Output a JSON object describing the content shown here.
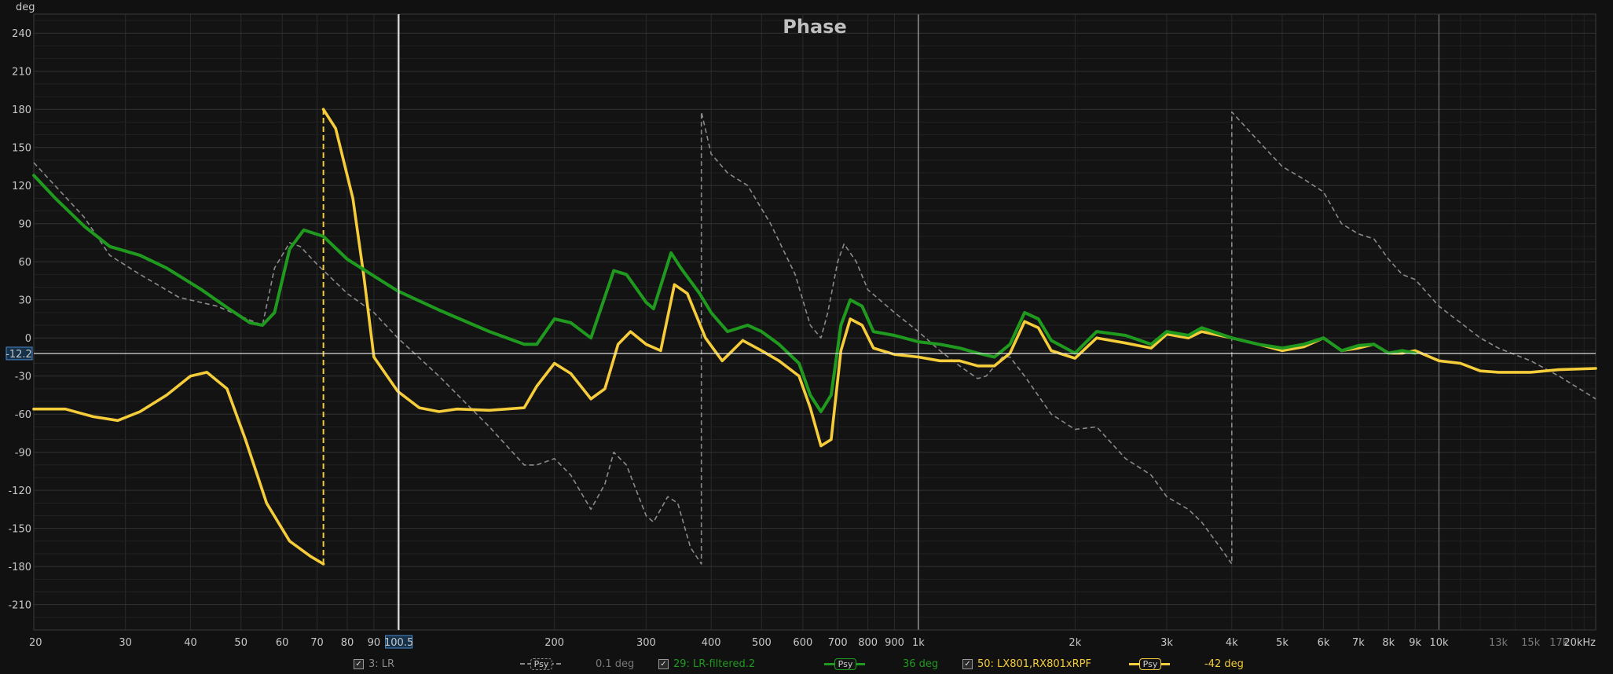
{
  "chart_data": {
    "type": "line",
    "title": "Phase",
    "ylabel": "deg",
    "xscale": "log",
    "xlim": [
      20,
      20000
    ],
    "ylim": [
      -230,
      255
    ],
    "y_ticks": [
      240,
      210,
      180,
      150,
      120,
      90,
      60,
      30,
      0,
      -30,
      -60,
      -90,
      -120,
      -150,
      -180,
      -210
    ],
    "x_ticks": [
      {
        "v": 20,
        "label": "20"
      },
      {
        "v": 30,
        "label": "30"
      },
      {
        "v": 40,
        "label": "40"
      },
      {
        "v": 50,
        "label": "50"
      },
      {
        "v": 60,
        "label": "60"
      },
      {
        "v": 70,
        "label": "70"
      },
      {
        "v": 80,
        "label": "80"
      },
      {
        "v": 90,
        "label": "90"
      },
      {
        "v": 200,
        "label": "200"
      },
      {
        "v": 300,
        "label": "300"
      },
      {
        "v": 400,
        "label": "400"
      },
      {
        "v": 500,
        "label": "500"
      },
      {
        "v": 600,
        "label": "600"
      },
      {
        "v": 700,
        "label": "700"
      },
      {
        "v": 800,
        "label": "800"
      },
      {
        "v": 900,
        "label": "900"
      },
      {
        "v": 1000,
        "label": "1k"
      },
      {
        "v": 2000,
        "label": "2k"
      },
      {
        "v": 3000,
        "label": "3k"
      },
      {
        "v": 4000,
        "label": "4k"
      },
      {
        "v": 5000,
        "label": "5k"
      },
      {
        "v": 6000,
        "label": "6k"
      },
      {
        "v": 7000,
        "label": "7k"
      },
      {
        "v": 8000,
        "label": "8k"
      },
      {
        "v": 9000,
        "label": "9k"
      },
      {
        "v": 10000,
        "label": "10k"
      },
      {
        "v": 13000,
        "label": "13k",
        "dim": true
      },
      {
        "v": 15000,
        "label": "15k",
        "dim": true
      },
      {
        "v": 17000,
        "label": "17k",
        "dim": true
      },
      {
        "v": 20000,
        "label": "20kHz"
      }
    ],
    "cursor": {
      "x": 100.5,
      "y": -12.2,
      "x_label": "100.5",
      "y_label": "-12.2"
    },
    "series": [
      {
        "name": "3: LR",
        "color": "#8a8a8a",
        "style": "dashed",
        "points": [
          [
            20,
            138
          ],
          [
            25,
            95
          ],
          [
            28,
            65
          ],
          [
            32,
            50
          ],
          [
            38,
            32
          ],
          [
            45,
            25
          ],
          [
            50,
            17
          ],
          [
            55,
            10
          ],
          [
            58,
            55
          ],
          [
            62,
            75
          ],
          [
            65,
            72
          ],
          [
            70,
            58
          ],
          [
            80,
            35
          ],
          [
            90,
            20
          ],
          [
            100,
            0
          ],
          [
            120,
            -30
          ],
          [
            150,
            -70
          ],
          [
            175,
            -100
          ],
          [
            185,
            -100
          ],
          [
            200,
            -95
          ],
          [
            215,
            -108
          ],
          [
            235,
            -135
          ],
          [
            250,
            -115
          ],
          [
            260,
            -90
          ],
          [
            275,
            -100
          ],
          [
            300,
            -140
          ],
          [
            310,
            -145
          ],
          [
            330,
            -125
          ],
          [
            345,
            -130
          ],
          [
            365,
            -165
          ],
          [
            383,
            -178
          ],
          [
            383,
            178
          ],
          [
            400,
            145
          ],
          [
            430,
            130
          ],
          [
            470,
            120
          ],
          [
            520,
            90
          ],
          [
            580,
            50
          ],
          [
            620,
            10
          ],
          [
            650,
            0
          ],
          [
            670,
            20
          ],
          [
            700,
            60
          ],
          [
            720,
            74
          ],
          [
            760,
            60
          ],
          [
            800,
            38
          ],
          [
            900,
            20
          ],
          [
            1000,
            5
          ],
          [
            1100,
            -10
          ],
          [
            1200,
            -22
          ],
          [
            1300,
            -32
          ],
          [
            1350,
            -30
          ],
          [
            1450,
            -15
          ],
          [
            1500,
            -15
          ],
          [
            1600,
            -30
          ],
          [
            1800,
            -60
          ],
          [
            2000,
            -72
          ],
          [
            2200,
            -70
          ],
          [
            2500,
            -95
          ],
          [
            2800,
            -108
          ],
          [
            3000,
            -125
          ],
          [
            3300,
            -135
          ],
          [
            3500,
            -145
          ],
          [
            3800,
            -165
          ],
          [
            4000,
            -178
          ],
          [
            4000,
            178
          ],
          [
            4500,
            155
          ],
          [
            5000,
            135
          ],
          [
            5500,
            125
          ],
          [
            6000,
            115
          ],
          [
            6500,
            90
          ],
          [
            7000,
            82
          ],
          [
            7500,
            78
          ],
          [
            8000,
            62
          ],
          [
            8500,
            50
          ],
          [
            9000,
            46
          ],
          [
            10000,
            25
          ],
          [
            11000,
            12
          ],
          [
            12000,
            0
          ],
          [
            13000,
            -8
          ],
          [
            15000,
            -18
          ],
          [
            17000,
            -30
          ],
          [
            20000,
            -48
          ]
        ]
      },
      {
        "name": "29: LR-filtered.2",
        "color": "#1f9a1f",
        "style": "solid",
        "points": [
          [
            20,
            128
          ],
          [
            22,
            110
          ],
          [
            25,
            88
          ],
          [
            28,
            72
          ],
          [
            32,
            65
          ],
          [
            36,
            55
          ],
          [
            42,
            38
          ],
          [
            47,
            24
          ],
          [
            52,
            12
          ],
          [
            55,
            10
          ],
          [
            58,
            20
          ],
          [
            62,
            70
          ],
          [
            66,
            85
          ],
          [
            72,
            80
          ],
          [
            80,
            62
          ],
          [
            100,
            37
          ],
          [
            120,
            22
          ],
          [
            150,
            5
          ],
          [
            175,
            -5
          ],
          [
            185,
            -5
          ],
          [
            200,
            15
          ],
          [
            215,
            12
          ],
          [
            235,
            0
          ],
          [
            260,
            53
          ],
          [
            275,
            50
          ],
          [
            300,
            28
          ],
          [
            310,
            23
          ],
          [
            335,
            67
          ],
          [
            350,
            55
          ],
          [
            380,
            35
          ],
          [
            400,
            20
          ],
          [
            430,
            5
          ],
          [
            470,
            10
          ],
          [
            500,
            5
          ],
          [
            540,
            -5
          ],
          [
            590,
            -20
          ],
          [
            620,
            -45
          ],
          [
            650,
            -58
          ],
          [
            680,
            -45
          ],
          [
            710,
            10
          ],
          [
            740,
            30
          ],
          [
            780,
            25
          ],
          [
            820,
            5
          ],
          [
            900,
            2
          ],
          [
            1000,
            -3
          ],
          [
            1100,
            -5
          ],
          [
            1200,
            -8
          ],
          [
            1300,
            -12
          ],
          [
            1400,
            -15
          ],
          [
            1500,
            -5
          ],
          [
            1600,
            20
          ],
          [
            1700,
            15
          ],
          [
            1800,
            -2
          ],
          [
            2000,
            -12
          ],
          [
            2200,
            5
          ],
          [
            2500,
            2
          ],
          [
            2800,
            -5
          ],
          [
            3000,
            5
          ],
          [
            3300,
            2
          ],
          [
            3500,
            8
          ],
          [
            4000,
            0
          ],
          [
            4500,
            -5
          ],
          [
            5000,
            -8
          ],
          [
            5500,
            -5
          ],
          [
            6000,
            0
          ],
          [
            6500,
            -10
          ],
          [
            7000,
            -6
          ],
          [
            7500,
            -5
          ],
          [
            8000,
            -12
          ],
          [
            8500,
            -10
          ],
          [
            9000,
            -12
          ]
        ]
      },
      {
        "name": "50: LX801,RX801xRPF",
        "color": "#f5cc3a",
        "style": "solid",
        "points": [
          [
            20,
            -56
          ],
          [
            23,
            -56
          ],
          [
            26,
            -62
          ],
          [
            29,
            -65
          ],
          [
            32,
            -58
          ],
          [
            36,
            -45
          ],
          [
            40,
            -30
          ],
          [
            43,
            -27
          ],
          [
            47,
            -40
          ],
          [
            51,
            -80
          ],
          [
            56,
            -130
          ],
          [
            62,
            -160
          ],
          [
            68,
            -172
          ],
          [
            72,
            -178
          ],
          [
            72,
            180
          ],
          [
            76,
            165
          ],
          [
            82,
            110
          ],
          [
            86,
            50
          ],
          [
            90,
            -15
          ],
          [
            100,
            -42
          ],
          [
            110,
            -55
          ],
          [
            120,
            -58
          ],
          [
            130,
            -56
          ],
          [
            150,
            -57
          ],
          [
            175,
            -55
          ],
          [
            185,
            -38
          ],
          [
            200,
            -20
          ],
          [
            215,
            -28
          ],
          [
            235,
            -48
          ],
          [
            250,
            -40
          ],
          [
            265,
            -5
          ],
          [
            280,
            5
          ],
          [
            300,
            -5
          ],
          [
            320,
            -10
          ],
          [
            340,
            42
          ],
          [
            360,
            35
          ],
          [
            390,
            0
          ],
          [
            420,
            -18
          ],
          [
            460,
            -2
          ],
          [
            500,
            -10
          ],
          [
            540,
            -18
          ],
          [
            590,
            -30
          ],
          [
            620,
            -55
          ],
          [
            650,
            -85
          ],
          [
            680,
            -80
          ],
          [
            710,
            -10
          ],
          [
            740,
            15
          ],
          [
            780,
            10
          ],
          [
            820,
            -8
          ],
          [
            900,
            -13
          ],
          [
            1000,
            -15
          ],
          [
            1100,
            -18
          ],
          [
            1200,
            -18
          ],
          [
            1300,
            -22
          ],
          [
            1400,
            -22
          ],
          [
            1500,
            -12
          ],
          [
            1600,
            13
          ],
          [
            1700,
            8
          ],
          [
            1800,
            -10
          ],
          [
            2000,
            -16
          ],
          [
            2200,
            0
          ],
          [
            2500,
            -4
          ],
          [
            2800,
            -8
          ],
          [
            3000,
            3
          ],
          [
            3300,
            0
          ],
          [
            3500,
            5
          ],
          [
            4000,
            0
          ],
          [
            4500,
            -5
          ],
          [
            5000,
            -10
          ],
          [
            5500,
            -7
          ],
          [
            6000,
            0
          ],
          [
            6500,
            -10
          ],
          [
            7000,
            -8
          ],
          [
            7500,
            -5
          ],
          [
            8000,
            -12
          ],
          [
            8500,
            -12
          ],
          [
            9000,
            -10
          ],
          [
            10000,
            -18
          ],
          [
            11000,
            -20
          ],
          [
            12000,
            -26
          ],
          [
            13000,
            -27
          ],
          [
            15000,
            -27
          ],
          [
            17000,
            -25
          ],
          [
            20000,
            -24
          ]
        ]
      }
    ]
  },
  "legend": {
    "items": [
      {
        "label": "3: LR",
        "value": "0.1 deg",
        "color": "#8a8a8a",
        "psy": "Psy"
      },
      {
        "label": "29: LR-filtered.2",
        "value": "36 deg",
        "color": "#1f9a1f",
        "psy": "Psy"
      },
      {
        "label": "50: LX801,RX801xRPF",
        "value": "-42 deg",
        "color": "#f5cc3a",
        "psy": "Psy"
      }
    ],
    "check_glyph": "✓"
  }
}
